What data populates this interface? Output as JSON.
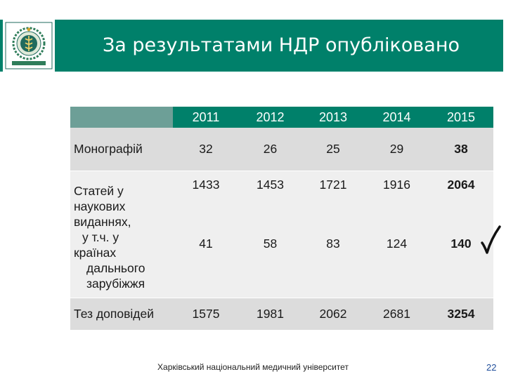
{
  "title": "За результатами НДР опубліковано",
  "table": {
    "years": [
      "2011",
      "2012",
      "2013",
      "2014",
      "2015"
    ],
    "rows": {
      "monographs": {
        "label": "Монографій",
        "values": [
          "32",
          "26",
          "25",
          "29",
          "38"
        ]
      },
      "articles": {
        "label_lines": [
          "Статей у",
          "наукових",
          "виданнях,",
          "  у т.ч. у",
          "країнах",
          "  дальнього",
          "  зарубіжжя"
        ],
        "values": [
          "1433",
          "1453",
          "1721",
          "1916",
          "2064"
        ],
        "abroad_values": [
          "41",
          "58",
          "83",
          "124",
          "140"
        ]
      },
      "theses": {
        "label": "Тез доповідей",
        "values": [
          "1575",
          "1981",
          "2062",
          "2681",
          "3254"
        ]
      }
    }
  },
  "footer": "Харківський національний медичний університет",
  "page_number": "22",
  "colors": {
    "header": "#00806a",
    "row_dark": "#dcdcdc",
    "row_light": "#efefef"
  },
  "icons": [
    "university-logo-icon",
    "checkmark-icon"
  ]
}
